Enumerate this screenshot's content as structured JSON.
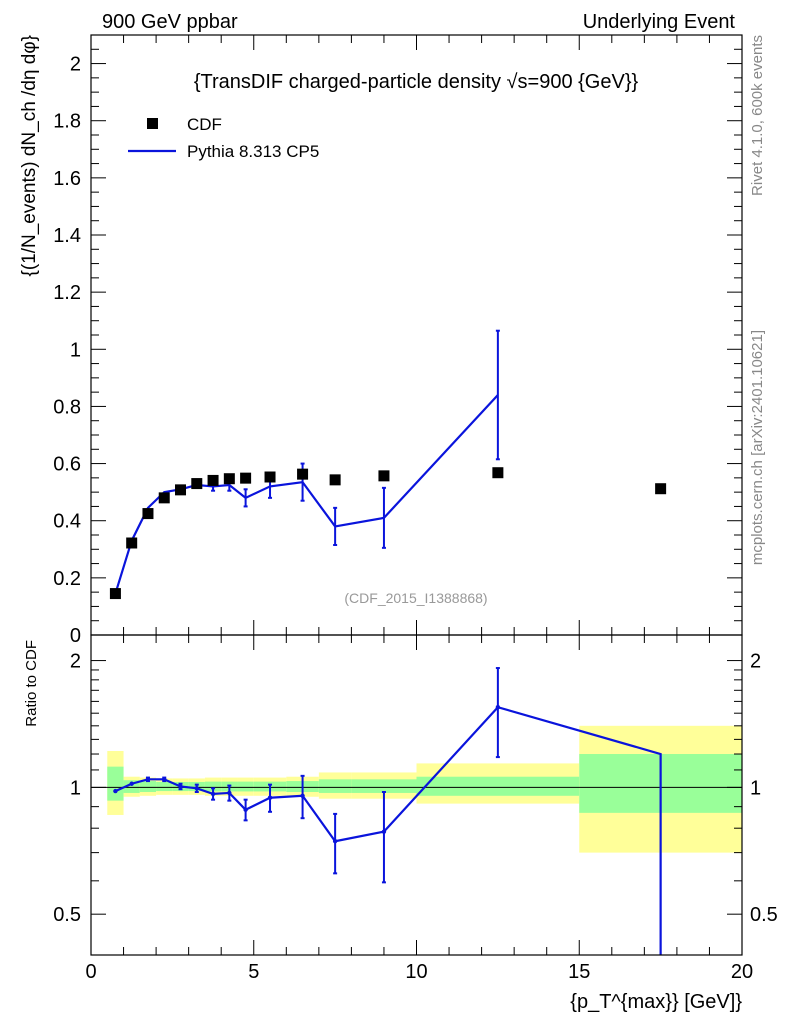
{
  "header": {
    "left": "900 GeV ppbar",
    "right": "Underlying Event"
  },
  "side_labels": {
    "rivet": "Rivet 4.1.0,  600k events",
    "mcplots": "mcplots.cern.ch [arXiv:2401.10621]"
  },
  "chart_data": [
    {
      "type": "scatter",
      "panel": "main",
      "title": "{TransDIF charged-particle density √s=900 {GeV}}",
      "ylabel": "{(1/N_events) dN_ch /dη dφ}",
      "xlim": [
        0,
        20
      ],
      "ylim": [
        0,
        2.1
      ],
      "yticks": [
        0,
        0.2,
        0.4,
        0.6,
        0.8,
        1,
        1.2,
        1.4,
        1.6,
        1.8,
        2
      ],
      "watermark": "(CDF_2015_I1388868)",
      "legend": {
        "position": "top-left",
        "entries": [
          {
            "label": "CDF",
            "marker": "square",
            "color": "#000000"
          },
          {
            "label": "Pythia 8.313 CP5",
            "marker": "line",
            "color": "#0a14dc"
          }
        ]
      },
      "series": [
        {
          "name": "CDF",
          "x": [
            0.75,
            1.25,
            1.75,
            2.25,
            2.75,
            3.25,
            3.75,
            4.25,
            4.75,
            5.5,
            6.5,
            7.5,
            9.0,
            12.5,
            17.5
          ],
          "values": [
            0.145,
            0.322,
            0.425,
            0.48,
            0.508,
            0.53,
            0.541,
            0.547,
            0.549,
            0.553,
            0.563,
            0.543,
            0.557,
            0.568,
            0.512
          ]
        },
        {
          "name": "Pythia 8.313 CP5",
          "x": [
            0.75,
            1.25,
            1.75,
            2.25,
            2.75,
            3.25,
            3.75,
            4.25,
            4.75,
            5.5,
            6.5,
            7.5,
            9.0,
            12.5
          ],
          "values": [
            0.145,
            0.33,
            0.445,
            0.5,
            0.51,
            0.525,
            0.52,
            0.525,
            0.48,
            0.52,
            0.535,
            0.38,
            0.41,
            0.84
          ],
          "errors": [
            0.0,
            0.0,
            0.0,
            0.0,
            0.0,
            0.0,
            0.015,
            0.02,
            0.03,
            0.04,
            0.065,
            0.065,
            0.105,
            0.225
          ]
        }
      ]
    },
    {
      "type": "line",
      "panel": "ratio",
      "ylabel": "Ratio to CDF",
      "xlabel": "{p_T^{max}} [GeV]}",
      "xlim": [
        0,
        20
      ],
      "ylim": [
        0.4,
        2.3
      ],
      "scale": "log",
      "yticks": [
        0.5,
        1,
        2
      ],
      "xticks": [
        0,
        5,
        10,
        15,
        20
      ],
      "reference": 1,
      "bands": [
        {
          "x0": 0.5,
          "x1": 1.0,
          "yellow": [
            0.86,
            1.22
          ],
          "green": [
            0.93,
            1.12
          ]
        },
        {
          "x0": 1.0,
          "x1": 1.5,
          "yellow": [
            0.95,
            1.06
          ],
          "green": [
            0.97,
            1.04
          ]
        },
        {
          "x0": 1.5,
          "x1": 2.0,
          "yellow": [
            0.955,
            1.055
          ],
          "green": [
            0.975,
            1.035
          ]
        },
        {
          "x0": 2.0,
          "x1": 2.5,
          "yellow": [
            0.96,
            1.05
          ],
          "green": [
            0.98,
            1.03
          ]
        },
        {
          "x0": 2.5,
          "x1": 3.0,
          "yellow": [
            0.96,
            1.05
          ],
          "green": [
            0.98,
            1.03
          ]
        },
        {
          "x0": 3.0,
          "x1": 3.5,
          "yellow": [
            0.96,
            1.05
          ],
          "green": [
            0.98,
            1.03
          ]
        },
        {
          "x0": 3.5,
          "x1": 4.0,
          "yellow": [
            0.955,
            1.055
          ],
          "green": [
            0.978,
            1.032
          ]
        },
        {
          "x0": 4.0,
          "x1": 4.5,
          "yellow": [
            0.955,
            1.055
          ],
          "green": [
            0.978,
            1.032
          ]
        },
        {
          "x0": 4.5,
          "x1": 5.0,
          "yellow": [
            0.955,
            1.055
          ],
          "green": [
            0.978,
            1.032
          ]
        },
        {
          "x0": 5.0,
          "x1": 6.0,
          "yellow": [
            0.955,
            1.055
          ],
          "green": [
            0.978,
            1.032
          ]
        },
        {
          "x0": 6.0,
          "x1": 7.0,
          "yellow": [
            0.95,
            1.06
          ],
          "green": [
            0.975,
            1.035
          ]
        },
        {
          "x0": 7.0,
          "x1": 8.0,
          "yellow": [
            0.94,
            1.085
          ],
          "green": [
            0.97,
            1.045
          ]
        },
        {
          "x0": 8.0,
          "x1": 10.0,
          "yellow": [
            0.94,
            1.085
          ],
          "green": [
            0.97,
            1.045
          ]
        },
        {
          "x0": 10.0,
          "x1": 15.0,
          "yellow": [
            0.915,
            1.14
          ],
          "green": [
            0.955,
            1.06
          ]
        },
        {
          "x0": 15.0,
          "x1": 20.0,
          "yellow": [
            0.7,
            1.4
          ],
          "green": [
            0.87,
            1.2
          ]
        }
      ],
      "series": [
        {
          "name": "Pythia 8.313 CP5 / CDF",
          "x": [
            0.75,
            1.25,
            1.75,
            2.25,
            2.75,
            3.25,
            3.75,
            4.25,
            4.75,
            5.5,
            6.5,
            7.5,
            9.0,
            12.5,
            17.5,
            17.5
          ],
          "values": [
            0.98,
            1.02,
            1.045,
            1.045,
            1.005,
            0.995,
            0.965,
            0.97,
            0.885,
            0.945,
            0.955,
            0.745,
            0.785,
            1.55,
            1.2,
            0.4
          ],
          "errors": [
            0.0,
            0.0,
            0.01,
            0.01,
            0.015,
            0.02,
            0.03,
            0.04,
            0.05,
            0.07,
            0.11,
            0.12,
            0.19,
            0.37,
            0.0,
            0.0
          ]
        }
      ]
    }
  ]
}
